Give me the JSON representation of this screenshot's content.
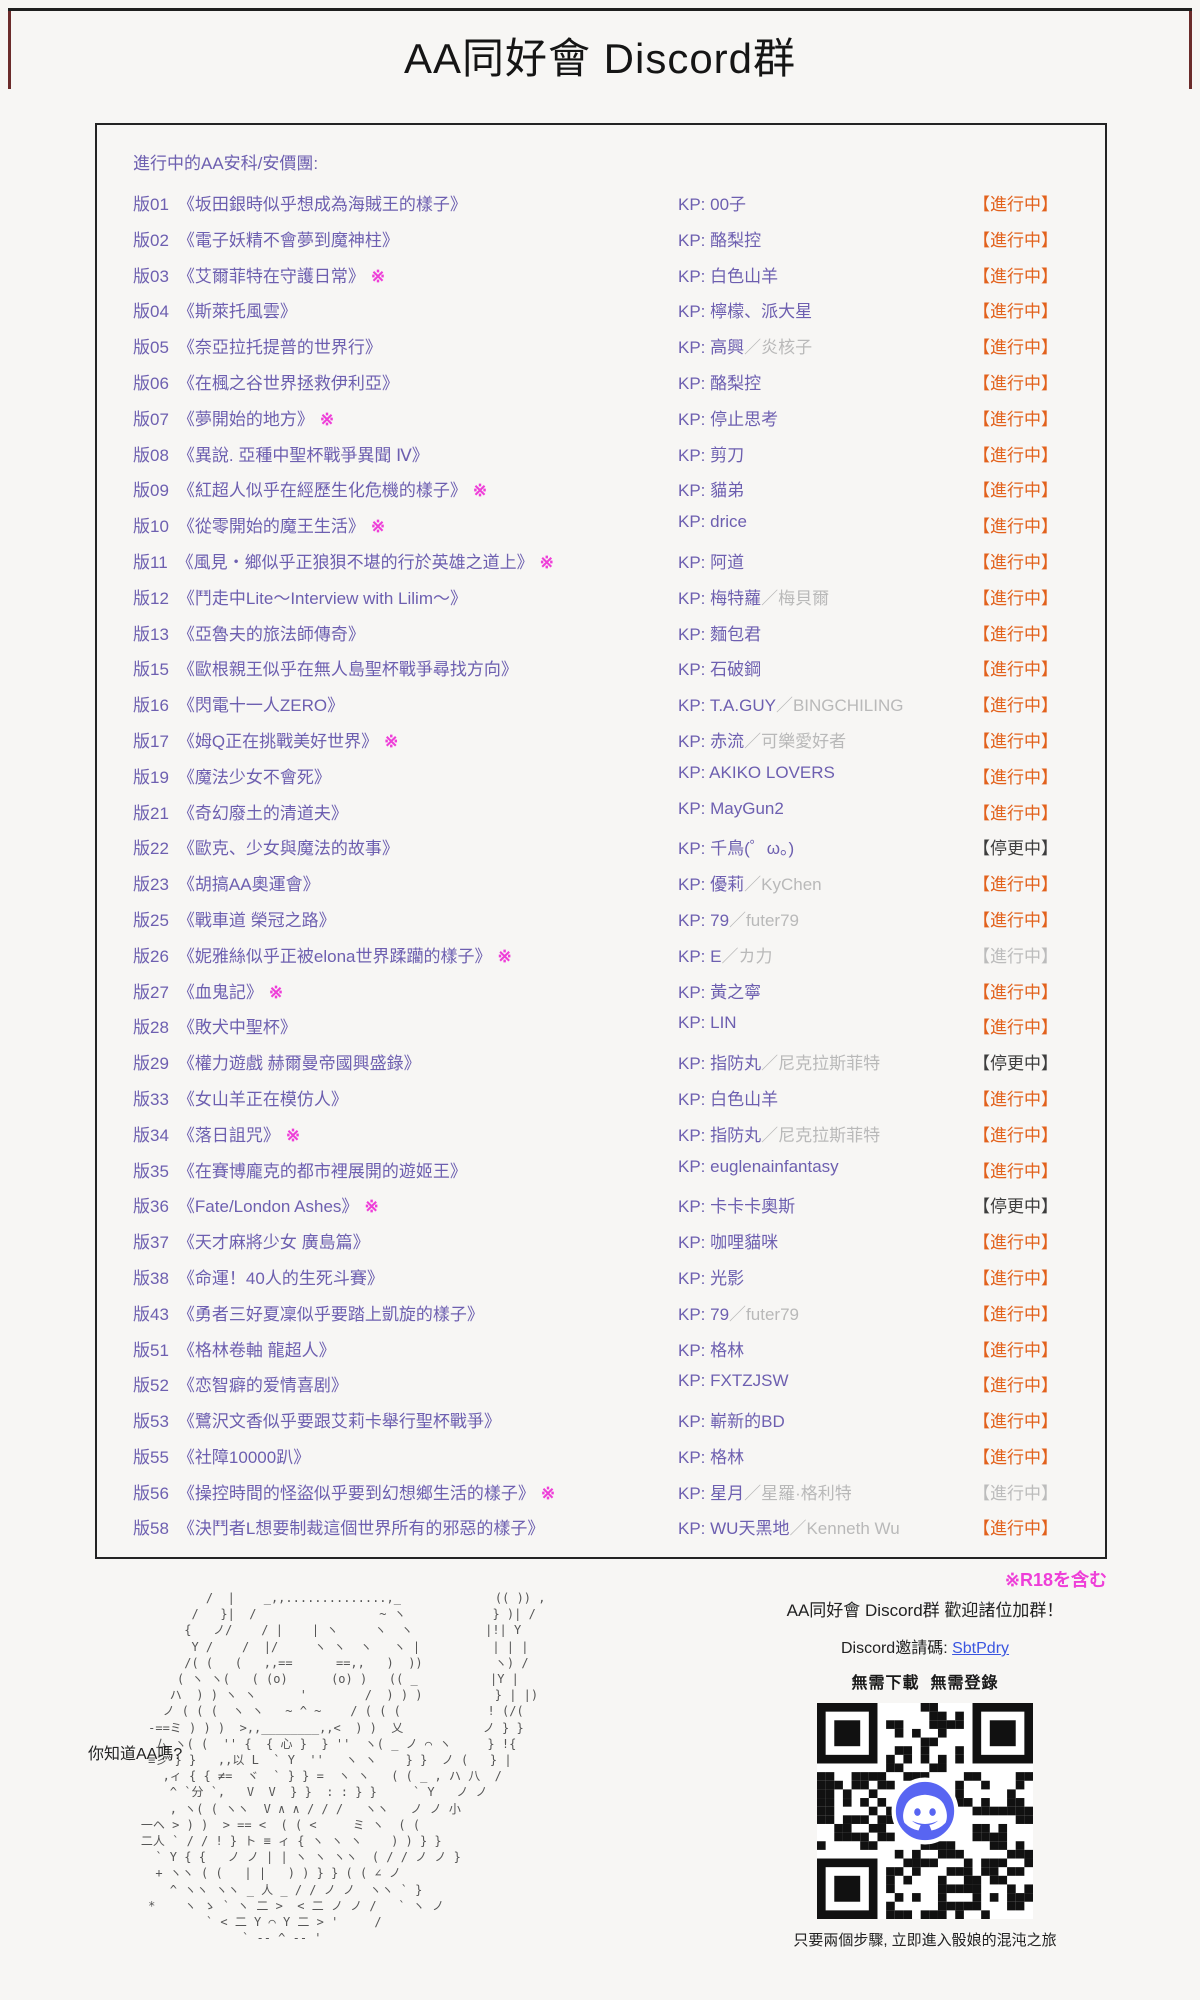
{
  "page": {
    "title": "AA同好會 Discord群",
    "intro": "進行中的AA安科/安價團:",
    "kp_prefix": "KP: ",
    "r18_mark": "※",
    "r18_note": "※R18を含む"
  },
  "rows": [
    {
      "id": "版01",
      "title": "《坂田銀時似乎想成為海賊王的樣子》",
      "r18": false,
      "kp": "00子",
      "kp2": "",
      "status": "【進行中】",
      "variant": "ongoing"
    },
    {
      "id": "版02",
      "title": "《電子妖精不會夢到魔神柱》",
      "r18": false,
      "kp": "酪梨控",
      "kp2": "",
      "status": "【進行中】",
      "variant": "ongoing"
    },
    {
      "id": "版03",
      "title": "《艾爾菲特在守護日常》",
      "r18": true,
      "kp": "白色山羊",
      "kp2": "",
      "status": "【進行中】",
      "variant": "ongoing"
    },
    {
      "id": "版04",
      "title": "《斯萊托風雲》",
      "r18": false,
      "kp": "檸檬、派大星",
      "kp2": "",
      "status": "【進行中】",
      "variant": "ongoing"
    },
    {
      "id": "版05",
      "title": "《奈亞拉托提普的世界行》",
      "r18": false,
      "kp": "高興",
      "kp2": "／炎核子",
      "status": "【進行中】",
      "variant": "ongoing"
    },
    {
      "id": "版06",
      "title": "《在楓之谷世界拯救伊利亞》",
      "r18": false,
      "kp": "酪梨控",
      "kp2": "",
      "status": "【進行中】",
      "variant": "ongoing"
    },
    {
      "id": "版07",
      "title": "《夢開始的地方》",
      "r18": true,
      "kp": "停止思考",
      "kp2": "",
      "status": "【進行中】",
      "variant": "ongoing"
    },
    {
      "id": "版08",
      "title": "《異說. 亞種中聖杯戰爭異聞 Ⅳ》",
      "r18": false,
      "kp": "剪刀",
      "kp2": "",
      "status": "【進行中】",
      "variant": "ongoing"
    },
    {
      "id": "版09",
      "title": "《紅超人似乎在經歷生化危機的樣子》",
      "r18": true,
      "kp": "貓弟",
      "kp2": "",
      "status": "【進行中】",
      "variant": "ongoing"
    },
    {
      "id": "版10",
      "title": "《從零開始的魔王生活》",
      "r18": true,
      "kp": "drice",
      "kp2": "",
      "status": "【進行中】",
      "variant": "ongoing"
    },
    {
      "id": "版11",
      "title": "《風見・鄉似乎正狼狽不堪的行於英雄之道上》",
      "r18": true,
      "kp": "阿道",
      "kp2": "",
      "status": "【進行中】",
      "variant": "ongoing"
    },
    {
      "id": "版12",
      "title": "《鬥走中Lite～Interview with Lilim～》",
      "r18": false,
      "kp": "梅特蘿",
      "kp2": "／梅貝爾",
      "status": "【進行中】",
      "variant": "ongoing"
    },
    {
      "id": "版13",
      "title": "《亞魯夫的旅法師傳奇》",
      "r18": false,
      "kp": "麵包君",
      "kp2": "",
      "status": "【進行中】",
      "variant": "ongoing"
    },
    {
      "id": "版15",
      "title": "《歐根親王似乎在無人島聖杯戰爭尋找方向》",
      "r18": false,
      "kp": "石破鋼",
      "kp2": "",
      "status": "【進行中】",
      "variant": "ongoing"
    },
    {
      "id": "版16",
      "title": "《閃電十一人ZERO》",
      "r18": false,
      "kp": "T.A.GUY",
      "kp2": "／BINGCHILING",
      "status": "【進行中】",
      "variant": "ongoing"
    },
    {
      "id": "版17",
      "title": "《姆Q正在挑戰美好世界》",
      "r18": true,
      "kp": "赤流",
      "kp2": "／可樂愛好者",
      "status": "【進行中】",
      "variant": "ongoing"
    },
    {
      "id": "版19",
      "title": "《魔法少女不會死》",
      "r18": false,
      "kp": "AKIKO LOVERS",
      "kp2": "",
      "status": "【進行中】",
      "variant": "ongoing"
    },
    {
      "id": "版21",
      "title": "《奇幻廢土的清道夫》",
      "r18": false,
      "kp": "MayGun2",
      "kp2": "",
      "status": "【進行中】",
      "variant": "ongoing"
    },
    {
      "id": "版22",
      "title": "《歐克、少女與魔法的故事》",
      "r18": false,
      "kp": "千鳥(゜ω。)",
      "kp2": "",
      "status": "【停更中】",
      "variant": "halted"
    },
    {
      "id": "版23",
      "title": "《胡搞AA奧運會》",
      "r18": false,
      "kp": "優莉",
      "kp2": "／KyChen",
      "status": "【進行中】",
      "variant": "ongoing"
    },
    {
      "id": "版25",
      "title": "《戰車道 榮冠之路》",
      "r18": false,
      "kp": "79",
      "kp2": "／futer79",
      "status": "【進行中】",
      "variant": "ongoing"
    },
    {
      "id": "版26",
      "title": "《妮雅絲似乎正被elona世界蹂躪的樣子》",
      "r18": true,
      "kp": "E",
      "kp2": "／カ力",
      "status": "【進行中】",
      "variant": "ongoing-muted"
    },
    {
      "id": "版27",
      "title": "《血鬼記》",
      "r18": true,
      "kp": "黃之寧",
      "kp2": "",
      "status": "【進行中】",
      "variant": "ongoing"
    },
    {
      "id": "版28",
      "title": "《敗犬中聖杯》",
      "r18": false,
      "kp": "LIN",
      "kp2": "",
      "status": "【進行中】",
      "variant": "ongoing"
    },
    {
      "id": "版29",
      "title": "《權力遊戲 赫爾曼帝國興盛錄》",
      "r18": false,
      "kp": "指防丸",
      "kp2": "／尼克拉斯菲特",
      "status": "【停更中】",
      "variant": "halted"
    },
    {
      "id": "版33",
      "title": "《女山羊正在模仿人》",
      "r18": false,
      "kp": "白色山羊",
      "kp2": "",
      "status": "【進行中】",
      "variant": "ongoing"
    },
    {
      "id": "版34",
      "title": "《落日詛咒》",
      "r18": true,
      "kp": "指防丸",
      "kp2": "／尼克拉斯菲特",
      "status": "【進行中】",
      "variant": "ongoing"
    },
    {
      "id": "版35",
      "title": "《在賽博龐克的都市裡展開的遊姬王》",
      "r18": false,
      "kp": "euglenainfantasy",
      "kp2": "",
      "status": "【進行中】",
      "variant": "ongoing"
    },
    {
      "id": "版36",
      "title": "《Fate/London Ashes》",
      "r18": true,
      "kp": "卡卡卡奧斯",
      "kp2": "",
      "status": "【停更中】",
      "variant": "halted"
    },
    {
      "id": "版37",
      "title": "《天才麻將少女 廣島篇》",
      "r18": false,
      "kp": "咖哩貓咪",
      "kp2": "",
      "status": "【進行中】",
      "variant": "ongoing"
    },
    {
      "id": "版38",
      "title": "《命運！40人的生死斗賽》",
      "r18": false,
      "kp": "光影",
      "kp2": "",
      "status": "【進行中】",
      "variant": "ongoing"
    },
    {
      "id": "版43",
      "title": "《勇者三好夏凜似乎要踏上凱旋的樣子》",
      "r18": false,
      "kp": "79",
      "kp2": "／futer79",
      "status": "【進行中】",
      "variant": "ongoing"
    },
    {
      "id": "版51",
      "title": "《格林卷軸 龍超人》",
      "r18": false,
      "kp": "格林",
      "kp2": "",
      "status": "【進行中】",
      "variant": "ongoing"
    },
    {
      "id": "版52",
      "title": "《恋智癖的爱情喜剧》",
      "r18": false,
      "kp": "FXTZJSW",
      "kp2": "",
      "status": "【進行中】",
      "variant": "ongoing"
    },
    {
      "id": "版53",
      "title": "《鷺沢文香似乎要跟艾莉卡舉行聖杯戰爭》",
      "r18": false,
      "kp": "嶄新的BD",
      "kp2": "",
      "status": "【進行中】",
      "variant": "ongoing"
    },
    {
      "id": "版55",
      "title": "《社障10000趴》",
      "r18": false,
      "kp": "格林",
      "kp2": "",
      "status": "【進行中】",
      "variant": "ongoing"
    },
    {
      "id": "版56",
      "title": "《操控時間的怪盜似乎要到幻想鄉生活的樣子》",
      "r18": true,
      "kp": "星月",
      "kp2": "／星羅·格利特",
      "status": "【進行中】",
      "variant": "ongoing-muted"
    },
    {
      "id": "版58",
      "title": "《決鬥者L想要制裁這個世界所有的邪惡的樣子》",
      "r18": false,
      "kp": "WU天黑地",
      "kp2": "／Kenneth Wu",
      "status": "【進行中】",
      "variant": "ongoing"
    }
  ],
  "footer": {
    "aa_question": "你知道AA嗎?",
    "ascii_art_lines": [
      "             /  |    _,,..............,_             (( )) ,",
      "           /   }|  /                 ~ ヽ            } )| /",
      "          {   ノ/    / |    | ヽ     ヽ  ヽ          |!| Y",
      "           Y /    /  |/     ヽ ヽ  ヽ   ヽ |          | | |",
      "          /( (   (   ,,==      ==,,   )  ))          ヽ) /",
      "         ( ヽ ヽ(   ( (o)      (o) )   (( _          |Y |",
      "        ハ  ) ) ヽ ヽ      '        /  ) ) )          } | |)",
      "       ノ ( ( (  ヽ ヽ   ~ ^ ~    / ( ( (            ! (/(",
      "     -==ミ ) ) )  >,,________,,<  ) )  乂           ノ } }",
      "      ム ヽ( (  '' {  { 心 }  } ''  ヽ( _ ノ ⌒ ヽ     } !{",
      "     ≡彡 } }   ,,以 L  ` Y  ''   ヽ ヽ    } }  ノ (   } |",
      "       ,ィ { { ≠=  ヾ  ` } } =  ヽ ヽ   ( ( _ , ハ 八  /",
      "        ^ `分 `,   V  V  } }  : : } }     ` Y   ノ ノ",
      "        , ヽ( ( ヽヽ  V ∧ ∧ / / /   ヽヽ   ノ ノ 小",
      "    一ヘ > ) )  > == <  ( ( <     ミ ヽ  ( (",
      "    二人 ` / / ! } ト ≡ ィ { ヽ ヽ ヽ    ) ) } }",
      "      ` Y { {   ノ ノ | | ヽ ヽ ヽヽ  ( / / ノ ノ }",
      "      + ヽヽ ( (   | |   ) ) } } ( ( ∠ ノ",
      "        ^ ヽヽ ヽヽ _ 人 _ / / ノ ノ  ヽヽ ` }",
      "     *    ヽ ゝ ` ヽ 二 >  < 二 ノ ノ /   ` ヽ ノ",
      "             ` < 二 Y ⌒ Y 二 > '     /",
      "                  ` -- ^ -- '"
    ],
    "discord": {
      "welcome": "AA同好會 Discord群  歡迎諸位加群！",
      "invite_label": "Discord邀請碼: ",
      "invite_code": "SbtPdry",
      "no_download": "無需下載  無需登錄",
      "qr_center_icon": "discord-logo",
      "qr_caption": "只要兩個步驟, 立即進入骰娘的混沌之旅"
    }
  },
  "colors": {
    "accent_purple": "#6d5fb0",
    "secondary_gray": "#b9b9b9",
    "status_ongoing_orange": "#e2611c",
    "status_halted_dark": "#3d3d3d",
    "status_muted_gray": "#bcbcbc",
    "r18_pink": "#ee3ed8",
    "link_blue": "#3a55e0",
    "discord_blurple": "#5865F2"
  }
}
